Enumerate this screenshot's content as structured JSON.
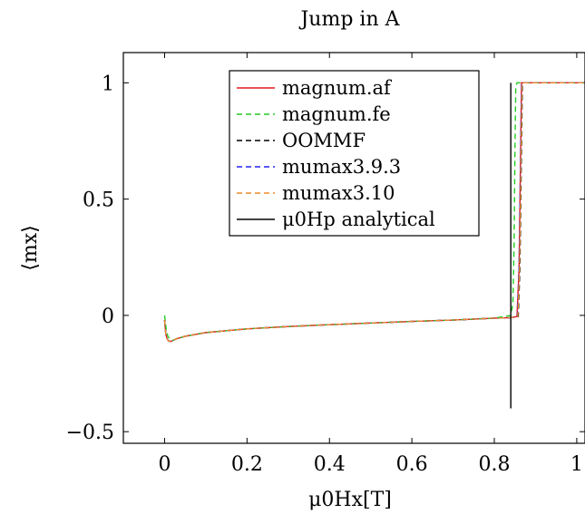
{
  "chart_data": {
    "type": "line",
    "title": "Jump in A",
    "xlabel": "μ0Hx[T]",
    "ylabel": "⟨mx⟩",
    "xlim": [
      -0.1,
      1.02
    ],
    "ylim": [
      -0.55,
      1.13
    ],
    "x_ticks": [
      0,
      0.2,
      0.4,
      0.6,
      0.8,
      1
    ],
    "x_tick_labels": [
      "0",
      "0.2",
      "0.4",
      "0.6",
      "0.8",
      "1"
    ],
    "y_ticks": [
      -0.5,
      0,
      0.5,
      1
    ],
    "y_tick_labels": [
      "−0.5",
      "0",
      "0.5",
      "1"
    ],
    "legend_position": "top-right",
    "series": [
      {
        "name": "magnum.af",
        "color": "#e31a1c",
        "dash": "solid",
        "x": [
          0,
          0.003,
          0.006,
          0.01,
          0.015,
          0.02,
          0.03,
          0.05,
          0.1,
          0.2,
          0.3,
          0.4,
          0.5,
          0.6,
          0.7,
          0.8,
          0.84,
          0.855,
          0.86,
          0.863,
          0.866,
          0.87,
          0.9,
          1.0,
          1.02
        ],
        "y": [
          -0.02,
          -0.08,
          -0.1,
          -0.11,
          -0.112,
          -0.108,
          -0.1,
          -0.09,
          -0.074,
          -0.058,
          -0.048,
          -0.04,
          -0.033,
          -0.026,
          -0.02,
          -0.012,
          -0.01,
          -0.005,
          0.2,
          0.6,
          1.0,
          1.0,
          1.0,
          1.0,
          1.0
        ]
      },
      {
        "name": "magnum.fe",
        "color": "#22cc22",
        "dash": "dashed",
        "x": [
          0,
          0.004,
          0.008,
          0.012,
          0.02,
          0.03,
          0.05,
          0.1,
          0.2,
          0.3,
          0.4,
          0.5,
          0.6,
          0.7,
          0.8,
          0.84,
          0.845,
          0.848,
          0.85,
          0.852,
          0.855,
          0.86,
          0.9,
          1.0,
          1.02
        ],
        "y": [
          0.0,
          -0.06,
          -0.09,
          -0.1,
          -0.108,
          -0.1,
          -0.09,
          -0.074,
          -0.058,
          -0.048,
          -0.04,
          -0.033,
          -0.026,
          -0.02,
          -0.012,
          0.0,
          0.05,
          0.3,
          0.7,
          0.98,
          1.0,
          1.0,
          1.0,
          1.0,
          1.0
        ]
      },
      {
        "name": "OOMMF",
        "color": "#000000",
        "dash": "dashed",
        "x": [
          0,
          0.003,
          0.006,
          0.01,
          0.015,
          0.02,
          0.03,
          0.05,
          0.1,
          0.2,
          0.3,
          0.4,
          0.5,
          0.6,
          0.7,
          0.8,
          0.84,
          0.858,
          0.862,
          0.865,
          0.868,
          0.872,
          0.9,
          1.0,
          1.02
        ],
        "y": [
          -0.02,
          -0.08,
          -0.1,
          -0.11,
          -0.112,
          -0.108,
          -0.1,
          -0.09,
          -0.074,
          -0.058,
          -0.048,
          -0.04,
          -0.033,
          -0.026,
          -0.02,
          -0.012,
          -0.01,
          -0.005,
          0.2,
          0.6,
          1.0,
          1.0,
          1.0,
          1.0,
          1.0
        ]
      },
      {
        "name": "mumax3.9.3",
        "color": "#2222ee",
        "dash": "dashed",
        "x": [
          0,
          0.003,
          0.006,
          0.01,
          0.015,
          0.02,
          0.03,
          0.05,
          0.1,
          0.2,
          0.3,
          0.4,
          0.5,
          0.6,
          0.7,
          0.8,
          0.84,
          0.856,
          0.86,
          0.863,
          0.866,
          0.87,
          0.9,
          1.0,
          1.02
        ],
        "y": [
          -0.02,
          -0.08,
          -0.1,
          -0.11,
          -0.112,
          -0.108,
          -0.1,
          -0.09,
          -0.074,
          -0.058,
          -0.048,
          -0.04,
          -0.033,
          -0.026,
          -0.02,
          -0.012,
          -0.01,
          -0.005,
          0.2,
          0.6,
          1.0,
          1.0,
          1.0,
          1.0,
          1.0
        ]
      },
      {
        "name": "mumax3.10",
        "color": "#f08c28",
        "dash": "dashed",
        "x": [
          0,
          0.003,
          0.006,
          0.01,
          0.015,
          0.02,
          0.03,
          0.05,
          0.1,
          0.2,
          0.3,
          0.4,
          0.5,
          0.6,
          0.7,
          0.8,
          0.84,
          0.857,
          0.861,
          0.864,
          0.867,
          0.871,
          0.9,
          1.0,
          1.02
        ],
        "y": [
          -0.02,
          -0.08,
          -0.1,
          -0.11,
          -0.112,
          -0.108,
          -0.1,
          -0.09,
          -0.074,
          -0.058,
          -0.048,
          -0.04,
          -0.033,
          -0.026,
          -0.02,
          -0.012,
          -0.01,
          -0.005,
          0.2,
          0.6,
          1.0,
          1.0,
          1.0,
          1.0,
          1.0
        ]
      },
      {
        "name": "μ0Hp analytical",
        "color": "#000000",
        "dash": "solid",
        "x": [
          0.84,
          0.84
        ],
        "y": [
          -0.4,
          1.0
        ]
      }
    ]
  }
}
